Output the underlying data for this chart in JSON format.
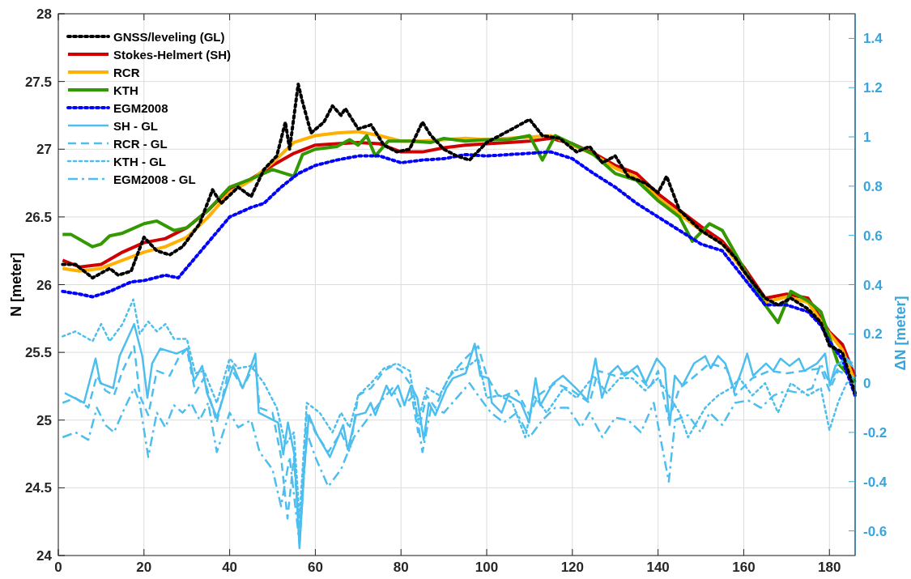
{
  "chart_data": {
    "type": "line",
    "ylabel": "N [meter]",
    "y2label": "ΔN [meter]",
    "xlim": [
      0,
      186
    ],
    "xticks": [
      0,
      20,
      40,
      60,
      80,
      100,
      120,
      140,
      160,
      180
    ],
    "ylim": [
      24,
      28
    ],
    "yticks": [
      24,
      24.5,
      25,
      25.5,
      26,
      26.5,
      27,
      27.5,
      28
    ],
    "y2lim": [
      -0.7,
      1.5
    ],
    "y2ticks": [
      -0.6,
      -0.4,
      -0.2,
      0,
      0.2,
      0.4,
      0.6,
      0.8,
      1,
      1.2,
      1.4
    ],
    "grid": true,
    "legend": "top left",
    "series": [
      {
        "name": "GNSS/leveling (GL)",
        "color": "#000000",
        "line_style": "dotted",
        "x": [
          1,
          4,
          8,
          12,
          14,
          17,
          20,
          23,
          26,
          29,
          33,
          36,
          38,
          42,
          45,
          48,
          51,
          53,
          54,
          56,
          57,
          59,
          62,
          64,
          66,
          67,
          70,
          73,
          76,
          79,
          82,
          85,
          87,
          90,
          93,
          96,
          100,
          103,
          106,
          110,
          113,
          117,
          121,
          124,
          127,
          130,
          133,
          137,
          140,
          142,
          145,
          150,
          155,
          158,
          160,
          165,
          168,
          171,
          175,
          178,
          180,
          183,
          186
        ],
        "values": [
          26.15,
          26.15,
          26.05,
          26.12,
          26.07,
          26.1,
          26.35,
          26.25,
          26.22,
          26.28,
          26.45,
          26.7,
          26.6,
          26.72,
          26.65,
          26.85,
          26.95,
          27.2,
          27.0,
          27.48,
          27.35,
          27.12,
          27.2,
          27.32,
          27.25,
          27.3,
          27.15,
          27.18,
          27.03,
          26.98,
          27.0,
          27.2,
          27.1,
          27.0,
          26.95,
          26.92,
          27.05,
          27.1,
          27.15,
          27.22,
          27.1,
          27.08,
          26.98,
          27.02,
          26.9,
          26.95,
          26.8,
          26.75,
          26.68,
          26.8,
          26.55,
          26.4,
          26.3,
          26.2,
          26.1,
          25.9,
          25.85,
          25.9,
          25.82,
          25.72,
          25.55,
          25.5,
          25.2
        ]
      },
      {
        "name": "Stokes-Helmert (SH)",
        "color": "#d00000",
        "line_style": "solid",
        "x": [
          1,
          5,
          10,
          15,
          20,
          25,
          30,
          35,
          40,
          45,
          50,
          55,
          60,
          65,
          70,
          75,
          80,
          85,
          90,
          95,
          100,
          105,
          110,
          115,
          120,
          125,
          130,
          135,
          140,
          145,
          150,
          155,
          160,
          165,
          170,
          175,
          180,
          183,
          186
        ],
        "values": [
          26.18,
          26.13,
          26.15,
          26.24,
          26.31,
          26.34,
          26.42,
          26.55,
          26.71,
          26.78,
          26.88,
          26.97,
          27.03,
          27.04,
          27.05,
          27.04,
          26.98,
          26.98,
          27.01,
          27.03,
          27.04,
          27.05,
          27.06,
          27.08,
          27.04,
          26.97,
          26.88,
          26.82,
          26.67,
          26.55,
          26.43,
          26.32,
          26.13,
          25.9,
          25.93,
          25.9,
          25.65,
          25.56,
          25.32
        ]
      },
      {
        "name": "RCR",
        "color": "#ffb000",
        "line_style": "solid",
        "x": [
          1,
          5,
          10,
          15,
          20,
          25,
          30,
          35,
          40,
          45,
          50,
          55,
          60,
          65,
          70,
          75,
          80,
          85,
          90,
          95,
          100,
          105,
          110,
          115,
          120,
          125,
          130,
          135,
          140,
          145,
          150,
          155,
          160,
          165,
          170,
          175,
          180,
          183,
          186
        ],
        "values": [
          26.12,
          26.1,
          26.12,
          26.18,
          26.24,
          26.28,
          26.35,
          26.5,
          26.68,
          26.77,
          26.9,
          27.05,
          27.1,
          27.12,
          27.13,
          27.1,
          27.06,
          27.06,
          27.07,
          27.08,
          27.07,
          27.08,
          27.09,
          27.1,
          27.03,
          26.96,
          26.86,
          26.79,
          26.64,
          26.52,
          26.4,
          26.3,
          26.1,
          25.87,
          25.91,
          25.87,
          25.64,
          25.52,
          25.28
        ]
      },
      {
        "name": "KTH",
        "color": "#339900",
        "line_style": "solid",
        "x": [
          1,
          3,
          8,
          10,
          12,
          15,
          20,
          23,
          27,
          30,
          35,
          40,
          45,
          50,
          53,
          55,
          57,
          60,
          65,
          68,
          70,
          72,
          74,
          77,
          82,
          87,
          90,
          95,
          100,
          105,
          110,
          113,
          116,
          120,
          125,
          130,
          135,
          140,
          145,
          148,
          152,
          155,
          160,
          165,
          168,
          171,
          175,
          178,
          182,
          186
        ],
        "values": [
          26.37,
          26.37,
          26.28,
          26.3,
          26.36,
          26.38,
          26.45,
          26.47,
          26.4,
          26.42,
          26.55,
          26.72,
          26.78,
          26.85,
          26.82,
          26.8,
          26.96,
          27.0,
          27.02,
          27.07,
          27.03,
          27.1,
          26.95,
          27.06,
          27.06,
          27.05,
          27.08,
          27.06,
          27.07,
          27.07,
          27.1,
          26.92,
          27.1,
          27.04,
          26.96,
          26.82,
          26.77,
          26.62,
          26.5,
          26.32,
          26.45,
          26.4,
          26.12,
          25.85,
          25.72,
          25.95,
          25.88,
          25.8,
          25.42,
          25.28
        ]
      },
      {
        "name": "EGM2008",
        "color": "#0000ff",
        "line_style": "dotted",
        "x": [
          1,
          5,
          8,
          12,
          17,
          20,
          25,
          28,
          32,
          36,
          40,
          45,
          48,
          52,
          56,
          60,
          65,
          70,
          75,
          80,
          85,
          90,
          95,
          100,
          105,
          110,
          115,
          120,
          125,
          130,
          135,
          140,
          145,
          150,
          155,
          160,
          165,
          170,
          175,
          178,
          180,
          183,
          186
        ],
        "values": [
          25.95,
          25.93,
          25.91,
          25.95,
          26.02,
          26.03,
          26.07,
          26.05,
          26.2,
          26.35,
          26.5,
          26.57,
          26.6,
          26.72,
          26.82,
          26.88,
          26.92,
          26.95,
          26.95,
          26.9,
          26.92,
          26.93,
          26.96,
          26.95,
          26.96,
          26.97,
          26.98,
          26.93,
          26.82,
          26.72,
          26.6,
          26.5,
          26.4,
          26.3,
          26.25,
          26.05,
          25.85,
          25.85,
          25.8,
          25.7,
          25.58,
          25.45,
          25.18
        ]
      },
      {
        "name": "SH - GL",
        "color": "#4dbeee",
        "line_style": "solid",
        "axis": "y2",
        "x": [
          1.5,
          6,
          8.7,
          9.8,
          12.8,
          14.3,
          17.7,
          19.6,
          20.8,
          21.9,
          23.8,
          27.6,
          30.2,
          31.7,
          33.6,
          34.7,
          37,
          40.8,
          43,
          44.2,
          46,
          46.8,
          51.3,
          52.5,
          53.6,
          55.1,
          56.3,
          57.4,
          58.5,
          60.4,
          63.4,
          66.5,
          67.6,
          69.5,
          71.7,
          72.9,
          74,
          76.6,
          77.8,
          79.3,
          80.8,
          82.3,
          83.8,
          85.3,
          86.5,
          88,
          90.6,
          92.1,
          95.1,
          97.2,
          98.5,
          100.4,
          101.2,
          103.5,
          105,
          108,
          109.9,
          111.4,
          112.5,
          115.5,
          117.8,
          120.8,
          123.5,
          125.4,
          126.9,
          128.8,
          130.6,
          132.2,
          135.2,
          137.1,
          139.7,
          141.6,
          142.7,
          143.9,
          145.7,
          148.4,
          151,
          152.3,
          154,
          155.7,
          157.8,
          159.5,
          160.8,
          162.2,
          165.2,
          166.9,
          168.6,
          170.7,
          172.9,
          174.2,
          177.1,
          179,
          180.1,
          181.4,
          184,
          185.4
        ],
        "values": [
          -0.04,
          -0.08,
          0.1,
          0,
          -0.02,
          0.11,
          0.24,
          0.11,
          -0.06,
          0.08,
          0.14,
          0.12,
          0.14,
          0.01,
          0.07,
          -0.04,
          -0.14,
          0.07,
          -0.02,
          0.03,
          0.12,
          -0.12,
          -0.16,
          -0.29,
          -0.16,
          -0.29,
          -0.67,
          -0.35,
          -0.13,
          -0.21,
          -0.3,
          -0.17,
          -0.27,
          -0.13,
          -0.12,
          -0.08,
          -0.13,
          -0.01,
          -0.05,
          -0.01,
          -0.09,
          -0.01,
          -0.06,
          -0.23,
          -0.08,
          -0.13,
          -0.02,
          0.02,
          0.04,
          0.16,
          0.03,
          0.02,
          -0.08,
          -0.12,
          -0.05,
          -0.08,
          -0.16,
          0.02,
          -0.09,
          0,
          0.03,
          -0.02,
          -0.07,
          0.1,
          -0.06,
          0.04,
          0.07,
          0.03,
          0.07,
          0,
          0.1,
          0.06,
          -0.17,
          0.03,
          -0.01,
          0.08,
          0.11,
          0.06,
          0.11,
          0.08,
          -0.03,
          0.05,
          0.12,
          0.03,
          0.08,
          0.05,
          0.1,
          0.07,
          0.1,
          0.05,
          0.08,
          0.12,
          -0.01,
          0.07,
          0.1,
          0.08
        ]
      },
      {
        "name": "RCR - GL",
        "color": "#4dbeee",
        "line_style": "dashed",
        "axis": "y2",
        "x": [
          1,
          4,
          7,
          9,
          11,
          13,
          15,
          17.7,
          19,
          21,
          23,
          26,
          28,
          30,
          32,
          34,
          37,
          40,
          43,
          46,
          47,
          50,
          52,
          53.5,
          55,
          56.3,
          58,
          60,
          63,
          66,
          68,
          70,
          73,
          76,
          78,
          80,
          82,
          84,
          86,
          88,
          91,
          95,
          98,
          100,
          103,
          107,
          110,
          112,
          116,
          120,
          124,
          126,
          130,
          134,
          138,
          140,
          142.5,
          145,
          148,
          152,
          156,
          158,
          162,
          166,
          170,
          174,
          178,
          180,
          182,
          186
        ],
        "values": [
          -0.08,
          -0.06,
          -0.1,
          0.03,
          -0.03,
          -0.05,
          0.05,
          0.15,
          -0.05,
          -0.13,
          0.05,
          0.03,
          0.1,
          0.14,
          -0.04,
          0.02,
          -0.16,
          0.07,
          -0.02,
          0.08,
          -0.1,
          -0.12,
          -0.3,
          -0.55,
          -0.3,
          -0.62,
          -0.12,
          -0.2,
          -0.28,
          -0.2,
          -0.28,
          -0.05,
          -0.02,
          0.05,
          0.07,
          0.05,
          0,
          -0.2,
          -0.05,
          -0.1,
          0.02,
          0.1,
          0.15,
          0.03,
          -0.06,
          -0.03,
          -0.13,
          -0.05,
          0,
          -0.03,
          -0.08,
          0.05,
          0.03,
          0.05,
          -0.02,
          0.05,
          -0.15,
          -0.02,
          0.02,
          0.08,
          0.06,
          -0.05,
          0.02,
          0.05,
          0.04,
          0.05,
          0.06,
          -0.03,
          0.05,
          0.02
        ]
      },
      {
        "name": "KTH - GL",
        "color": "#4dbeee",
        "line_style": "dotted",
        "axis": "y2",
        "x": [
          1,
          4,
          8,
          10,
          12,
          15,
          17.5,
          19,
          21,
          23,
          25,
          27,
          30,
          32,
          34,
          37,
          40,
          42,
          45,
          48,
          51,
          53,
          55,
          56.3,
          58,
          61,
          64,
          66,
          68,
          70,
          73,
          76,
          79,
          82,
          84,
          86,
          89,
          92,
          95,
          98,
          100,
          103,
          106,
          109,
          111,
          114,
          118,
          121,
          125,
          128,
          131,
          134,
          137,
          140,
          142.5,
          145,
          147,
          149,
          151,
          154,
          157,
          159,
          162,
          165,
          168,
          171,
          175,
          178,
          180,
          182,
          184,
          186
        ],
        "values": [
          0.19,
          0.21,
          0.17,
          0.24,
          0.17,
          0.24,
          0.34,
          0.2,
          0.25,
          0.21,
          0.24,
          0.18,
          0.18,
          0.04,
          0.05,
          -0.08,
          0.1,
          0.06,
          0.07,
          0,
          -0.1,
          -0.25,
          -0.2,
          -0.55,
          -0.08,
          -0.12,
          -0.2,
          -0.12,
          -0.18,
          -0.05,
          0,
          0.06,
          0.08,
          0.05,
          -0.15,
          -0.02,
          -0.05,
          0.05,
          0.06,
          0.1,
          -0.06,
          -0.05,
          -0.08,
          -0.22,
          -0.05,
          -0.12,
          -0.02,
          -0.06,
          0.03,
          -0.04,
          0.02,
          0.02,
          -0.03,
          0.02,
          -0.05,
          -0.12,
          -0.22,
          -0.16,
          -0.1,
          -0.05,
          -0.02,
          0.02,
          -0.05,
          0,
          -0.12,
          0,
          -0.05,
          -0.02,
          -0.19,
          -0.08,
          0,
          0.02
        ]
      },
      {
        "name": "EGM2008 - GL",
        "color": "#4dbeee",
        "line_style": "dashdot",
        "axis": "y2",
        "x": [
          1,
          4,
          7,
          9,
          11,
          13,
          15,
          17.7,
          19,
          21,
          23,
          25,
          27,
          29,
          31,
          33,
          35,
          37,
          40,
          42,
          45,
          47,
          50,
          52,
          54,
          56.3,
          58,
          60,
          63,
          66,
          69,
          72,
          75,
          78,
          80,
          83,
          85,
          87,
          90,
          93,
          96,
          98,
          101,
          104,
          107,
          110,
          113,
          116,
          119,
          122,
          124,
          127,
          130,
          133,
          136,
          139,
          142.5,
          144,
          147,
          150,
          152,
          155,
          158,
          161,
          164,
          167,
          170,
          173,
          176,
          178,
          180,
          182,
          184,
          186
        ],
        "values": [
          -0.22,
          -0.2,
          -0.23,
          -0.1,
          -0.17,
          -0.2,
          -0.12,
          -0.02,
          -0.08,
          -0.3,
          -0.12,
          -0.18,
          -0.09,
          -0.12,
          -0.08,
          -0.15,
          -0.08,
          -0.28,
          -0.12,
          -0.18,
          -0.15,
          -0.28,
          -0.35,
          -0.5,
          -0.3,
          -0.65,
          -0.2,
          -0.3,
          -0.42,
          -0.35,
          -0.22,
          -0.15,
          -0.08,
          -0.02,
          -0.1,
          -0.05,
          -0.28,
          -0.1,
          -0.12,
          -0.06,
          0,
          -0.05,
          -0.12,
          -0.16,
          -0.12,
          -0.22,
          -0.15,
          -0.1,
          -0.1,
          -0.18,
          -0.12,
          -0.22,
          -0.14,
          -0.15,
          -0.2,
          -0.08,
          -0.4,
          -0.15,
          -0.13,
          -0.2,
          -0.12,
          -0.17,
          -0.08,
          -0.07,
          -0.1,
          -0.05,
          -0.03,
          -0.04,
          -0.02,
          0.08,
          0,
          0.06,
          0.09,
          0.06
        ]
      }
    ]
  }
}
